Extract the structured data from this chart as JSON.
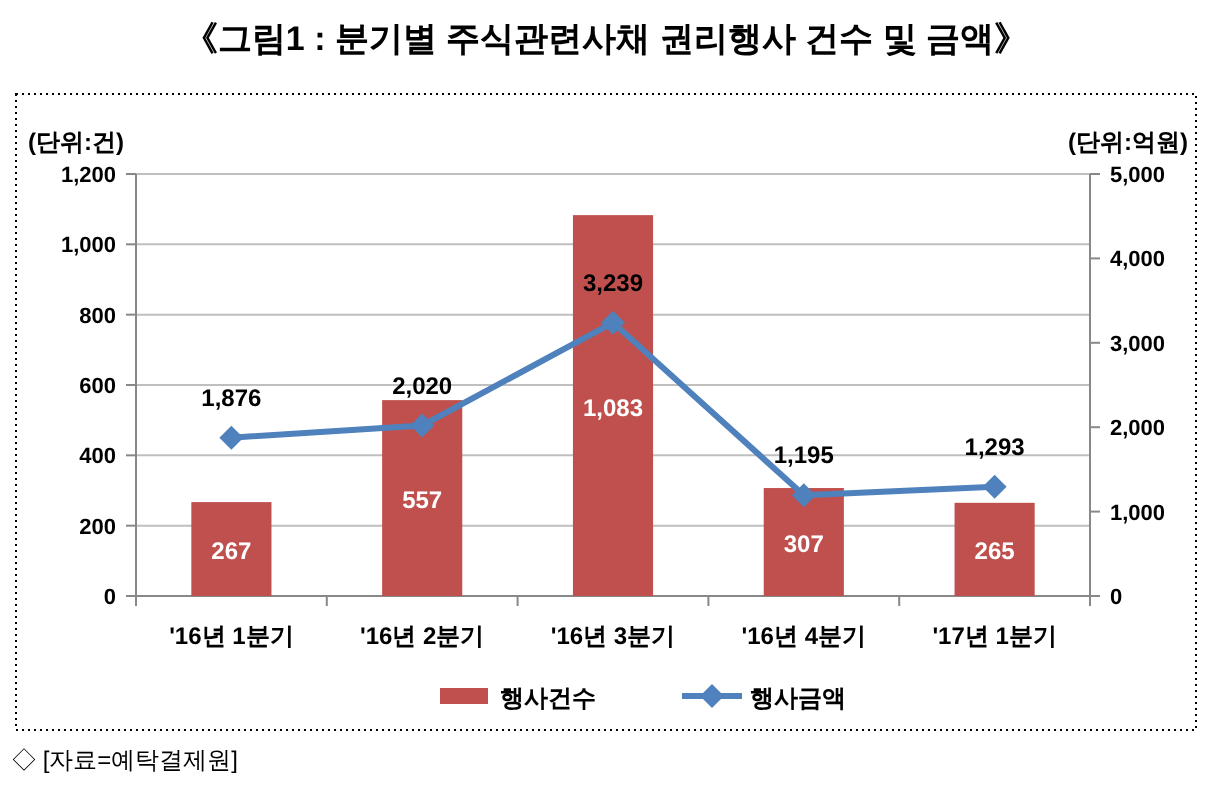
{
  "chart_data": {
    "type": "bar",
    "title": "《그림1 : 분기별 주식관련사채 권리행사 건수 및 금액》",
    "ylabel": "(단위:건)",
    "y2label": "(단위:억원)",
    "categories": [
      "'16년 1분기",
      "'16년 2분기",
      "'16년 3분기",
      "'16년 4분기",
      "'17년 1분기"
    ],
    "series": [
      {
        "name": "행사건수",
        "color": "#c0504d",
        "values": [
          267,
          557,
          1083,
          307,
          265
        ],
        "value_labels": [
          "267",
          "557",
          "1,083",
          "307",
          "265"
        ]
      },
      {
        "name": "행사금액",
        "type": "line",
        "axis": "y2",
        "color": "#4f81bd",
        "values": [
          1876,
          2020,
          3239,
          1195,
          1293
        ],
        "value_labels": [
          "1,876",
          "2,020",
          "3,239",
          "1,195",
          "1,293"
        ]
      }
    ],
    "ylim": [
      0,
      1200
    ],
    "yticks": [
      {
        "value": 0,
        "label": "0"
      },
      {
        "value": 200,
        "label": "200"
      },
      {
        "value": 400,
        "label": "400"
      },
      {
        "value": 600,
        "label": "600"
      },
      {
        "value": 800,
        "label": "800"
      },
      {
        "value": 1000,
        "label": "1,000"
      },
      {
        "value": 1200,
        "label": "1,200"
      }
    ],
    "y2lim": [
      0,
      5000
    ],
    "y2ticks": [
      {
        "value": 0,
        "label": "0"
      },
      {
        "value": 1000,
        "label": "1,000"
      },
      {
        "value": 2000,
        "label": "2,000"
      },
      {
        "value": 3000,
        "label": "3,000"
      },
      {
        "value": 4000,
        "label": "4,000"
      },
      {
        "value": 5000,
        "label": "5,000"
      }
    ],
    "grid": "y",
    "legend": "bottom",
    "marker": "diamond",
    "line_style": "solid",
    "annotations": [
      "◇ [자료=예탁결제원]"
    ]
  }
}
